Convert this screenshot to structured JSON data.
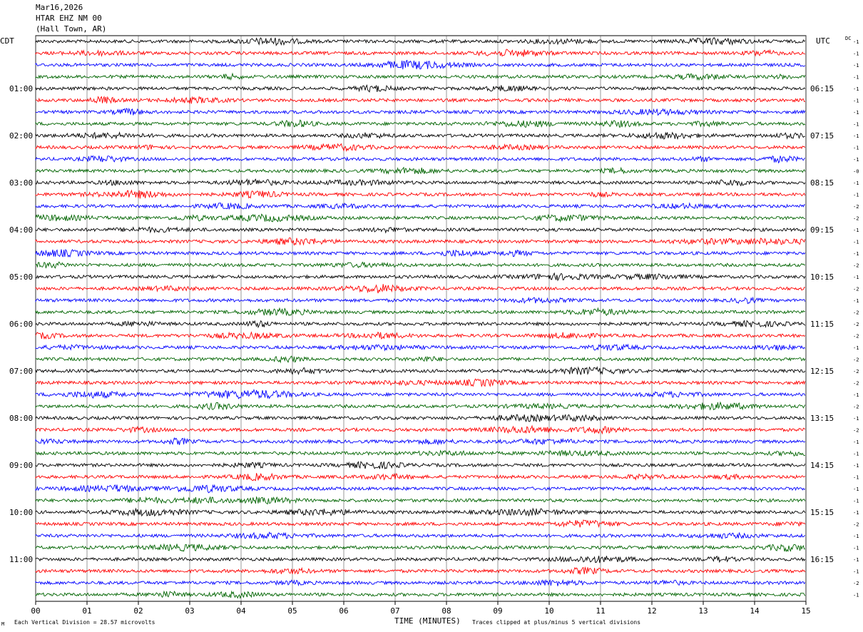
{
  "header": {
    "date": "Mar16,2026",
    "station": "HTAR EHZ NM 00",
    "location": "(Hall Town, AR)"
  },
  "left_tz": "CDT",
  "right_tz": "UTC",
  "dc_label": "DC",
  "footer": {
    "scale_note": "Each Vertical Division =   28.57 microvolts",
    "clip_note": "Traces clipped at plus/minus 5 vertical divisions",
    "corner_mark": "M"
  },
  "colors": [
    "#000000",
    "#ff0000",
    "#0000ff",
    "#006400"
  ],
  "chart_data": {
    "type": "line",
    "xlabel": "TIME (MINUTES)",
    "x_ticks": [
      "00",
      "01",
      "02",
      "03",
      "04",
      "05",
      "06",
      "07",
      "08",
      "09",
      "10",
      "11",
      "12",
      "13",
      "14",
      "15"
    ],
    "xlim": [
      0,
      15
    ],
    "grid": true,
    "left_hour_labels": [
      "01:00",
      "02:00",
      "03:00",
      "04:00",
      "05:00",
      "06:00",
      "07:00",
      "08:00",
      "09:00",
      "10:00",
      "11:00"
    ],
    "right_hour_labels": [
      "06:15",
      "07:15",
      "08:15",
      "09:15",
      "10:15",
      "11:15",
      "12:15",
      "13:15",
      "14:15",
      "15:15",
      "16:15"
    ],
    "dc_offsets": [
      "-1",
      "-1",
      "-1",
      "-1",
      "-1",
      "-1",
      "-1",
      "-1",
      "-1",
      "-1",
      "-1",
      "-0",
      "-1",
      "-1",
      "-2",
      "-2",
      "-1",
      "-1",
      "-1",
      "-2",
      "-1",
      "-2",
      "-1",
      "-2",
      "-2",
      "-2",
      "-1",
      "-2",
      "-2",
      "-2",
      "-1",
      "-2",
      "-1",
      "-2",
      "-1",
      "-1",
      "-1",
      "-1",
      "-1",
      "-1",
      "-1",
      "-2",
      "-1",
      "-1",
      "-1",
      "-1",
      "-2",
      "-1"
    ]
  }
}
